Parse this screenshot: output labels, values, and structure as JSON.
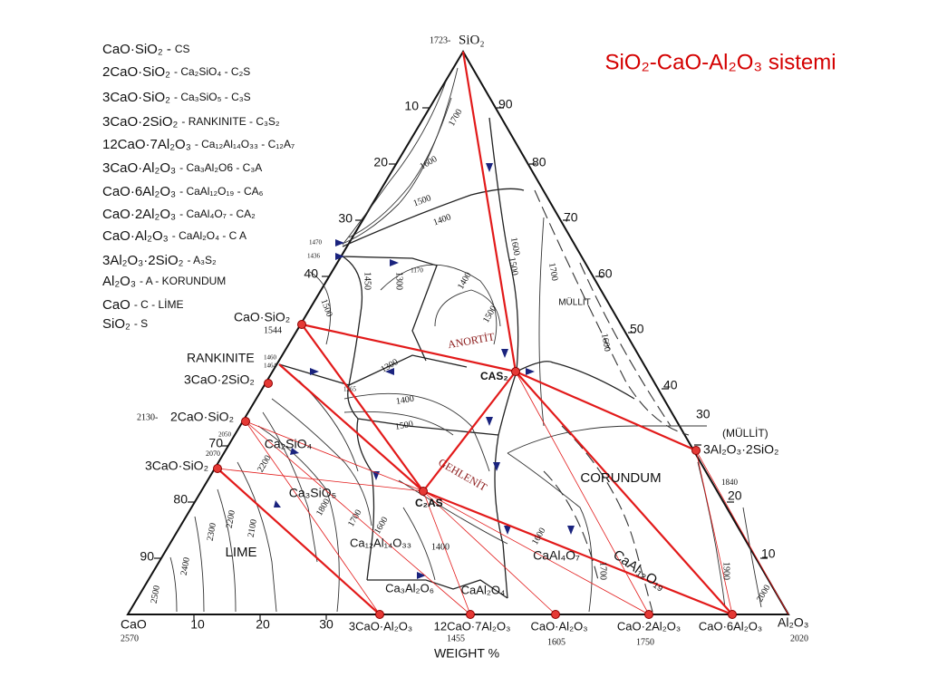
{
  "title": "SiO₂-CaO-Al₂O₃ sistemi",
  "legend": [
    {
      "formula": "CaO·SiO₂ -",
      "desc": "CS"
    },
    {
      "formula": "2CaO·SiO₂",
      "desc": "- Ca₂SiO₄ - C₂S"
    },
    {
      "formula": "3CaO·SiO₂",
      "desc": "- Ca₃SiO₅ - C₃S"
    },
    {
      "formula": "3CaO·2SiO₂",
      "desc": "- RANKINITE - C₃S₂"
    },
    {
      "formula": "12CaO·7Al₂O₃",
      "desc": "- Ca₁₂Al₁₄O₃₃ - C₁₂A₇"
    },
    {
      "formula": "3CaO·Al₂O₃",
      "desc": "- Ca₃Al₂O6 - C₃A"
    },
    {
      "formula": "CaO·6Al₂O₃",
      "desc": "- CaAl₁₂O₁₉ - CA₆"
    },
    {
      "formula": "CaO·2Al₂O₃",
      "desc": "- CaAl₄O₇ - CA₂"
    },
    {
      "formula": "CaO·Al₂O₃",
      "desc": "- CaAl₂O₄ - C A"
    },
    {
      "formula": "3Al₂O₃·2SiO₂",
      "desc": "- A₃S₂"
    },
    {
      "formula": "Al₂O₃",
      "desc": "- A - KORUNDUM"
    },
    {
      "formula": "CaO",
      "desc": "- C - LİME"
    },
    {
      "formula": "SiO₂",
      "desc": "- S"
    }
  ],
  "vertices": {
    "sio2": {
      "name": "SiO₂",
      "temperature": "1723-"
    },
    "cao": {
      "name": "CaO",
      "temperature": "2570"
    },
    "al2o3": {
      "name": "Al₂O₃",
      "temperature": "2020"
    }
  },
  "compounds": [
    {
      "name": "CaO·SiO₂",
      "temperature": "1544"
    },
    {
      "name": "3CaO·2SiO₂",
      "mineral": "RANKINITE",
      "temperatures": [
        "1460",
        "1464"
      ]
    },
    {
      "name": "2CaO·SiO₂",
      "temperature": "2130-"
    },
    {
      "name": "3CaO·SiO₂",
      "temperature": "2070"
    },
    {
      "name": "CAS₂"
    },
    {
      "name": "C₂AS"
    },
    {
      "name": "3Al₂O₃·2SiO₂",
      "mineral": "(MÜLLİT)",
      "temperature": "1840"
    },
    {
      "name": "3CaO·Al₂O₃"
    },
    {
      "name": "12CaO·7Al₂O₃",
      "temperature": "1455"
    },
    {
      "name": "CaO·Al₂O₃",
      "temperature": "1605"
    },
    {
      "name": "CaO·2Al₂O₃",
      "temperature": "1750"
    },
    {
      "name": "CaO·6Al₂O₃"
    }
  ],
  "axis": {
    "left_ticks": [
      "10",
      "20",
      "30",
      "40",
      "70",
      "80",
      "90"
    ],
    "right_ticks": [
      "90",
      "80",
      "70",
      "60",
      "50",
      "40",
      "30",
      "20",
      "10"
    ],
    "bottom_ticks": [
      "10",
      "20",
      "30"
    ],
    "label": "WEIGHT %"
  },
  "phase_fields": [
    "ANORTİT",
    "GEHLENİT",
    "CORUNDUM",
    "LIME",
    "MÜLLİT",
    "Ca₂SiO₄",
    "Ca₃SiO₅",
    "Ca₁₂Al₁₄O₃₃",
    "Ca₃Al₂O₆",
    "CaAl₂O₄",
    "CaAl₄O₇",
    "CaAl₁₂O₁₉"
  ],
  "isotherms": [
    "1700",
    "1600",
    "1500",
    "1400",
    "1600",
    "1500",
    "1400",
    "1500",
    "1700",
    "1600",
    "1300",
    "1450",
    "1500",
    "1300",
    "1400",
    "1500",
    "1265",
    "1470",
    "1436",
    "1170",
    "1900",
    "2000",
    "1800",
    "1700",
    "1600",
    "1400",
    "2200",
    "2100",
    "2200",
    "2300",
    "2400",
    "2500",
    "1600",
    "1700",
    "2050"
  ]
}
